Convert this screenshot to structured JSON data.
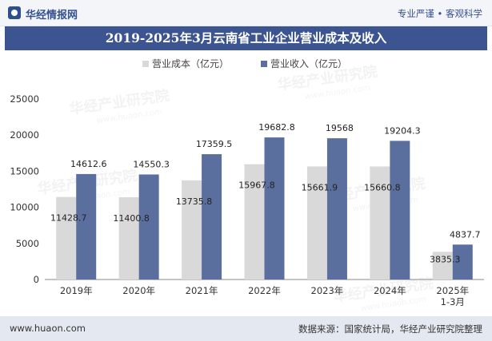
{
  "header": {
    "brand": "华经情报网",
    "slogan": "专业严谨 • 客观科学"
  },
  "title": "2019-2025年3月云南省工业企业营业成本及收入",
  "footer": {
    "site": "www.huaon.com",
    "source": "数据来源：国家统计局，华经产业研究院整理"
  },
  "watermark": "华经产业研究院",
  "watermark_url": "www.huaon.com",
  "colors": {
    "cost": "#d9d9d9",
    "revenue": "#5b6f9f",
    "title_bg": "#3c5591",
    "brand": "#34508f"
  },
  "chart_data": {
    "type": "bar",
    "categories": [
      [
        "2019年"
      ],
      [
        "2020年"
      ],
      [
        "2021年"
      ],
      [
        "2022年"
      ],
      [
        "2023年"
      ],
      [
        "2024年"
      ],
      [
        "2025年",
        "1-3月"
      ]
    ],
    "series": [
      {
        "name": "营业成本（亿元）",
        "values": [
          11428.7,
          11400.8,
          13735.8,
          15967.8,
          15661.9,
          15660.8,
          3835.3
        ]
      },
      {
        "name": "营业收入（亿元）",
        "values": [
          14612.6,
          14550.3,
          17359.5,
          19682.8,
          19568,
          19204.3,
          4837.7
        ]
      }
    ],
    "ylim": [
      0,
      25000
    ],
    "yticks": [
      0,
      5000,
      10000,
      15000,
      20000,
      25000
    ],
    "legend_position": "top-center",
    "grid": false
  }
}
